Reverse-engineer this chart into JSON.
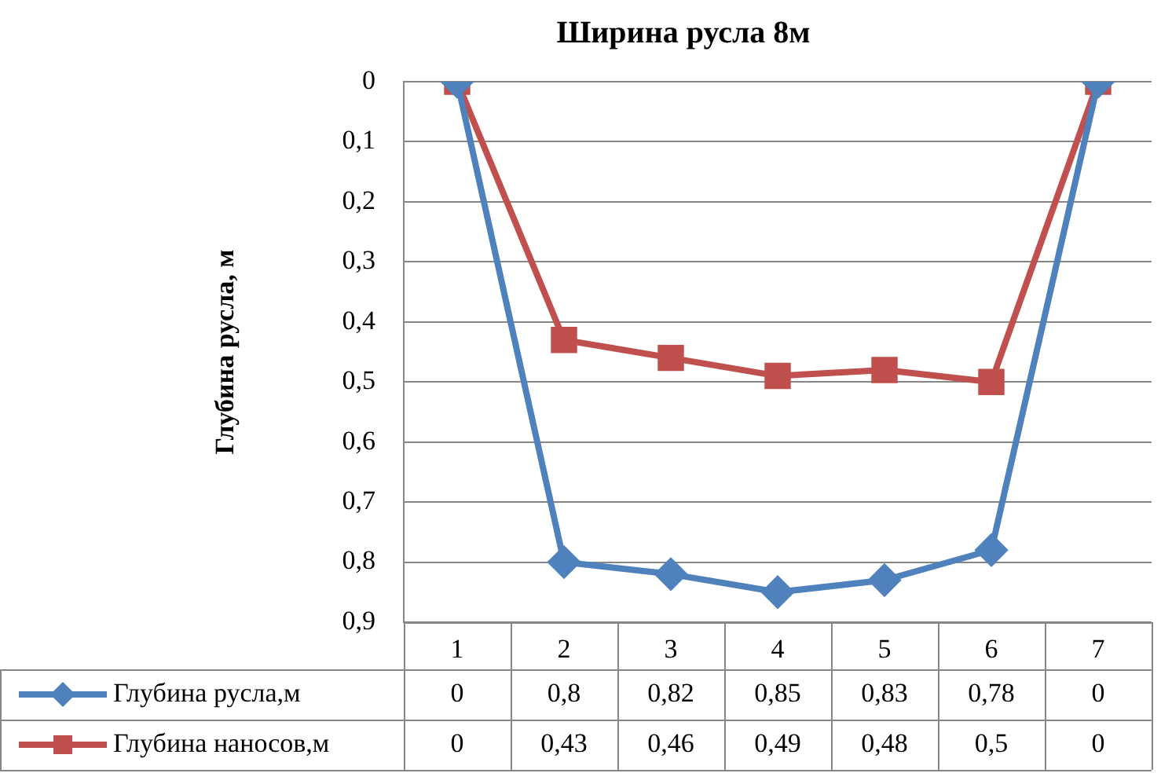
{
  "chart_data": {
    "type": "line",
    "title": "Ширина русла 8м",
    "ylabel": "Глубина русла, м",
    "categories": [
      "1",
      "2",
      "3",
      "4",
      "5",
      "6",
      "7"
    ],
    "series": [
      {
        "name": "Глубина русла,м",
        "color": "#4f81bd",
        "marker": "diamond",
        "values": [
          0,
          0.8,
          0.82,
          0.85,
          0.83,
          0.78,
          0
        ],
        "value_labels": [
          "0",
          "0,8",
          "0,82",
          "0,85",
          "0,83",
          "0,78",
          "0"
        ]
      },
      {
        "name": "Глубина наносов,м",
        "color": "#c0504d",
        "marker": "square",
        "values": [
          0,
          0.43,
          0.46,
          0.49,
          0.48,
          0.5,
          0
        ],
        "value_labels": [
          "0",
          "0,43",
          "0,46",
          "0,49",
          "0,48",
          "0,5",
          "0"
        ]
      }
    ],
    "ylim": [
      0.9,
      0
    ],
    "yticks": [
      {
        "value": 0,
        "label": "0"
      },
      {
        "value": 0.1,
        "label": "0,1"
      },
      {
        "value": 0.2,
        "label": "0,2"
      },
      {
        "value": 0.3,
        "label": "0,3"
      },
      {
        "value": 0.4,
        "label": "0,4"
      },
      {
        "value": 0.5,
        "label": "0,5"
      },
      {
        "value": 0.6,
        "label": "0,6"
      },
      {
        "value": 0.7,
        "label": "0,7"
      },
      {
        "value": 0.8,
        "label": "0,8"
      },
      {
        "value": 0.9,
        "label": "0,9"
      }
    ],
    "grid": "y",
    "legend": "bottom",
    "line_style": "solid"
  }
}
